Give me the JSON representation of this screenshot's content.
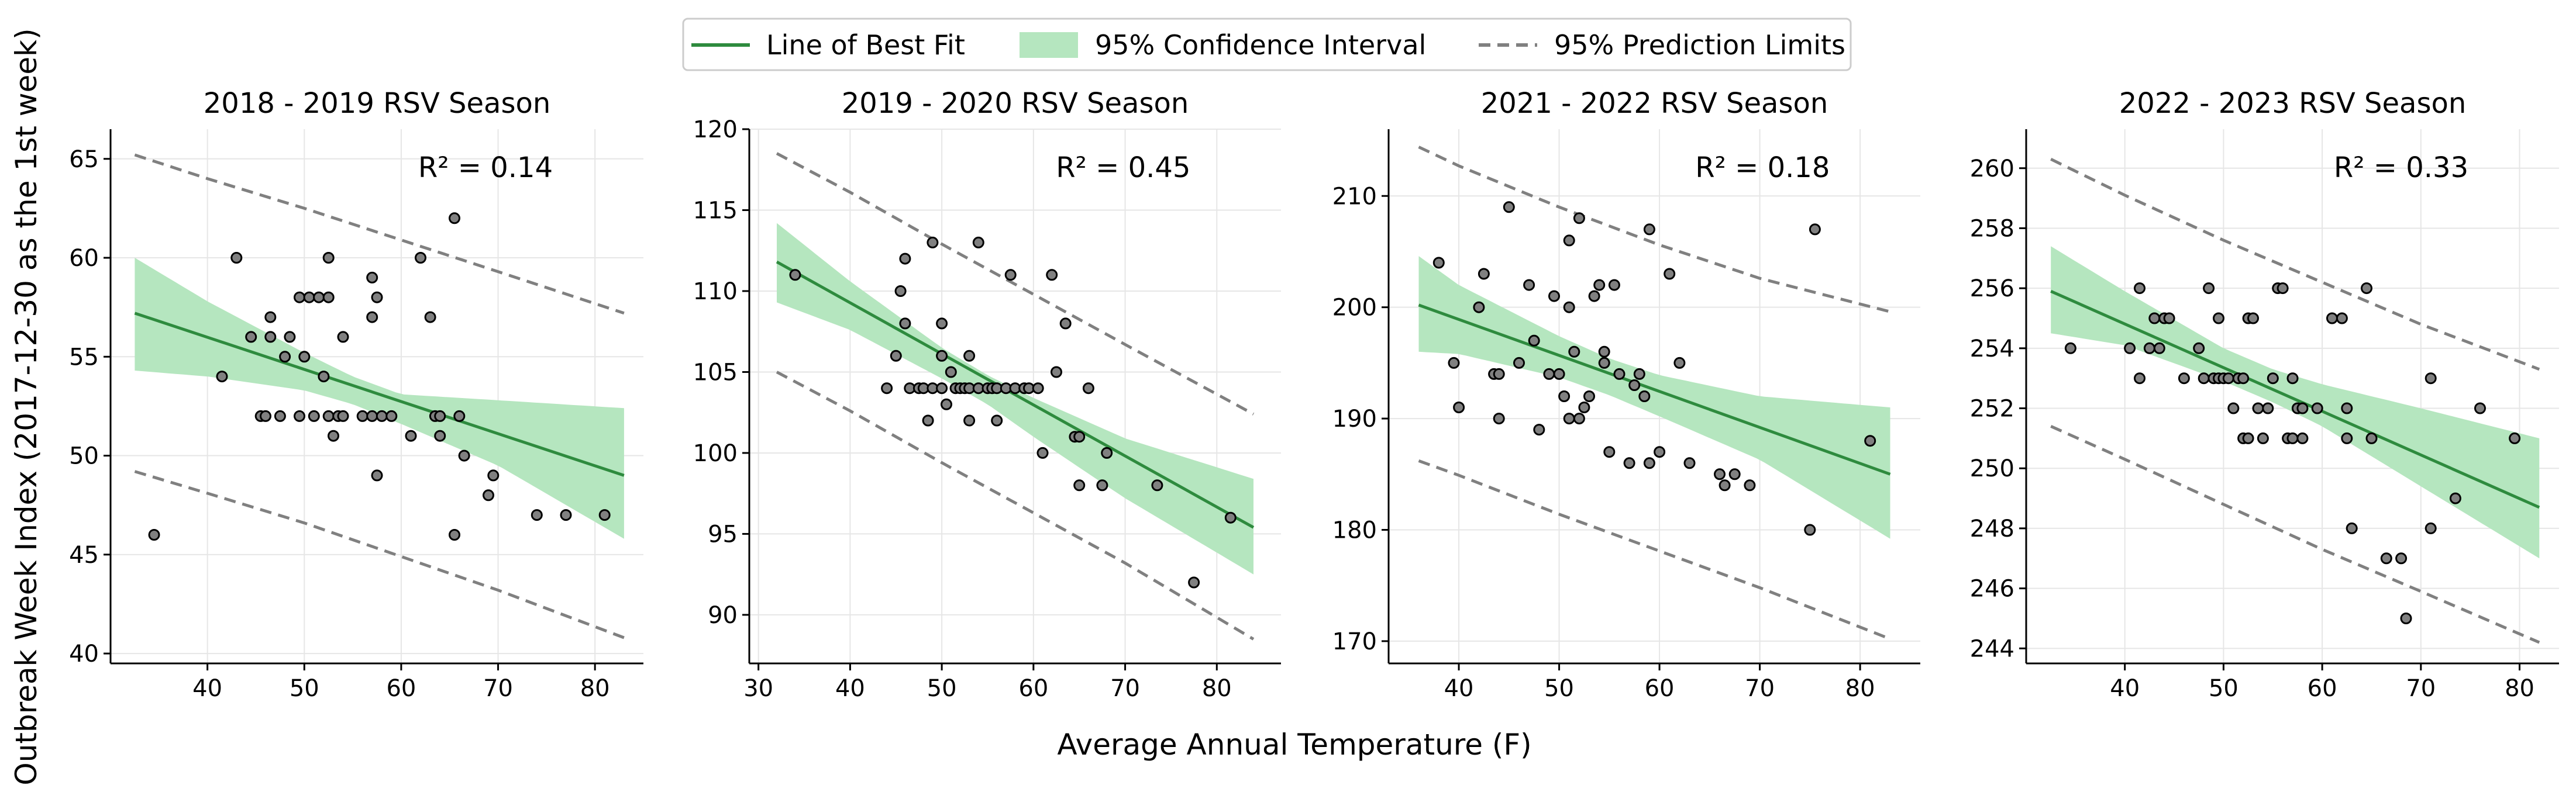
{
  "figure": {
    "ylabel": "Outbreak Week Index (2017-12-30 as the 1st week)",
    "xlabel": "Average Annual Temperature (F)"
  },
  "legend": {
    "placement": "top-center",
    "items": [
      {
        "label": "Line of Best Fit",
        "kind": "line",
        "color": "#2e8b3e"
      },
      {
        "label": "95% Confidence Interval",
        "kind": "band",
        "color": "#b5e6bf"
      },
      {
        "label": "95% Prediction Limits",
        "kind": "dashed",
        "color": "#808080"
      }
    ]
  },
  "colors": {
    "fit_line": "#2e8b3e",
    "ci_band": "#b5e6bf",
    "prediction_limits": "#808080",
    "point_fill": "#808080",
    "point_edge": "#000000",
    "grid": "#e6e6e6"
  },
  "chart_data": [
    {
      "type": "scatter",
      "title": "2018 - 2019 RSV Season",
      "annotation": "R² = 0.14",
      "xlim": [
        30,
        85
      ],
      "ylim": [
        39.5,
        66.5
      ],
      "xticks": [
        40,
        50,
        60,
        70,
        80
      ],
      "yticks": [
        40,
        45,
        50,
        55,
        60,
        65
      ],
      "grid": true,
      "points": [
        [
          34.5,
          46
        ],
        [
          41.5,
          54
        ],
        [
          43,
          60
        ],
        [
          44.5,
          56
        ],
        [
          45.5,
          52
        ],
        [
          46,
          52
        ],
        [
          46.5,
          57
        ],
        [
          46.5,
          56
        ],
        [
          47.5,
          52
        ],
        [
          48,
          55
        ],
        [
          48.5,
          56
        ],
        [
          49.5,
          58
        ],
        [
          49.5,
          52
        ],
        [
          50,
          55
        ],
        [
          50.5,
          58
        ],
        [
          51,
          52
        ],
        [
          51.5,
          58
        ],
        [
          52,
          54
        ],
        [
          52.5,
          58
        ],
        [
          52.5,
          60
        ],
        [
          52.5,
          52
        ],
        [
          53,
          51
        ],
        [
          53.5,
          52
        ],
        [
          54,
          56
        ],
        [
          54,
          52
        ],
        [
          56,
          52
        ],
        [
          57,
          59
        ],
        [
          57,
          57
        ],
        [
          57,
          52
        ],
        [
          57.5,
          58
        ],
        [
          57.5,
          49
        ],
        [
          58,
          52
        ],
        [
          59,
          52
        ],
        [
          61,
          51
        ],
        [
          62,
          60
        ],
        [
          63,
          57
        ],
        [
          63.5,
          52
        ],
        [
          64,
          51
        ],
        [
          64,
          52
        ],
        [
          65.5,
          46
        ],
        [
          65.5,
          62
        ],
        [
          66,
          52
        ],
        [
          66.5,
          50
        ],
        [
          69,
          48
        ],
        [
          69.5,
          49
        ],
        [
          74,
          47
        ],
        [
          77,
          47
        ],
        [
          81,
          47
        ]
      ],
      "fit": {
        "x": [
          32.5,
          83
        ],
        "y": [
          57.2,
          49.0
        ]
      },
      "ci_upper": {
        "x": [
          32.5,
          40,
          50,
          55,
          60,
          70,
          83
        ],
        "y": [
          60.0,
          57.8,
          55.2,
          54.0,
          53.1,
          52.8,
          52.4
        ]
      },
      "ci_lower": {
        "x": [
          32.5,
          40,
          50,
          55,
          60,
          70,
          83
        ],
        "y": [
          54.3,
          54.0,
          53.3,
          52.6,
          51.6,
          49.5,
          45.8
        ]
      },
      "pi_upper": {
        "x": [
          32.5,
          40,
          50,
          60,
          70,
          83
        ],
        "y": [
          65.2,
          64.0,
          62.5,
          60.9,
          59.3,
          57.2
        ]
      },
      "pi_lower": {
        "x": [
          32.5,
          40,
          50,
          60,
          70,
          83
        ],
        "y": [
          49.2,
          48.1,
          46.6,
          44.9,
          43.2,
          40.8
        ]
      }
    },
    {
      "type": "scatter",
      "title": "2019 - 2020 RSV Season",
      "annotation": "R² = 0.45",
      "xlim": [
        29,
        87
      ],
      "ylim": [
        87,
        120
      ],
      "xticks": [
        30,
        40,
        50,
        60,
        70,
        80
      ],
      "yticks": [
        90,
        95,
        100,
        105,
        110,
        115,
        120
      ],
      "grid": true,
      "points": [
        [
          34,
          111
        ],
        [
          44,
          104
        ],
        [
          45,
          106
        ],
        [
          45.5,
          110
        ],
        [
          46,
          112
        ],
        [
          46,
          108
        ],
        [
          46.5,
          104
        ],
        [
          47.5,
          104
        ],
        [
          48,
          104
        ],
        [
          48.5,
          102
        ],
        [
          49,
          113
        ],
        [
          49,
          104
        ],
        [
          50,
          108
        ],
        [
          50,
          106
        ],
        [
          50,
          104
        ],
        [
          50.5,
          103
        ],
        [
          51,
          105
        ],
        [
          51.5,
          104
        ],
        [
          52,
          104
        ],
        [
          52.5,
          104
        ],
        [
          53,
          106
        ],
        [
          53,
          104
        ],
        [
          53,
          102
        ],
        [
          54,
          113
        ],
        [
          54,
          104
        ],
        [
          55,
          104
        ],
        [
          55.5,
          104
        ],
        [
          56,
          102
        ],
        [
          56,
          104
        ],
        [
          57,
          104
        ],
        [
          57.5,
          111
        ],
        [
          58,
          104
        ],
        [
          59,
          104
        ],
        [
          59.5,
          104
        ],
        [
          60.5,
          104
        ],
        [
          61,
          100
        ],
        [
          62,
          111
        ],
        [
          62.5,
          105
        ],
        [
          63.5,
          108
        ],
        [
          64.5,
          101
        ],
        [
          65,
          101
        ],
        [
          65,
          98
        ],
        [
          66,
          104
        ],
        [
          67.5,
          98
        ],
        [
          68,
          100
        ],
        [
          73.5,
          98
        ],
        [
          77.5,
          92
        ],
        [
          81.5,
          96
        ]
      ],
      "fit": {
        "x": [
          32,
          84
        ],
        "y": [
          111.8,
          95.4
        ]
      },
      "ci_upper": {
        "x": [
          32,
          40,
          50,
          55,
          60,
          70,
          84
        ],
        "y": [
          114.2,
          110.6,
          106.5,
          104.8,
          103.4,
          100.9,
          98.4
        ]
      },
      "ci_lower": {
        "x": [
          32,
          40,
          50,
          55,
          60,
          70,
          84
        ],
        "y": [
          109.3,
          107.6,
          104.6,
          103.0,
          101.0,
          97.2,
          92.5
        ]
      },
      "pi_upper": {
        "x": [
          32,
          40,
          50,
          60,
          70,
          84
        ],
        "y": [
          118.5,
          116.1,
          112.9,
          109.8,
          106.7,
          102.4
        ]
      },
      "pi_lower": {
        "x": [
          32,
          40,
          50,
          60,
          70,
          84
        ],
        "y": [
          105.0,
          102.6,
          99.4,
          96.3,
          93.2,
          88.5
        ]
      }
    },
    {
      "type": "scatter",
      "title": "2021 - 2022 RSV Season",
      "annotation": "R² = 0.18",
      "xlim": [
        33,
        86
      ],
      "ylim": [
        168,
        216
      ],
      "xticks": [
        40,
        50,
        60,
        70,
        80
      ],
      "yticks": [
        170,
        180,
        190,
        200,
        210
      ],
      "grid": true,
      "points": [
        [
          38,
          204
        ],
        [
          39.5,
          195
        ],
        [
          40,
          191
        ],
        [
          42,
          200
        ],
        [
          42.5,
          203
        ],
        [
          43.5,
          194
        ],
        [
          44,
          190
        ],
        [
          44,
          194
        ],
        [
          45,
          209
        ],
        [
          46,
          195
        ],
        [
          47,
          202
        ],
        [
          47.5,
          197
        ],
        [
          48,
          189
        ],
        [
          49,
          194
        ],
        [
          49.5,
          201
        ],
        [
          50,
          194
        ],
        [
          50.5,
          192
        ],
        [
          51,
          190
        ],
        [
          51,
          200
        ],
        [
          51,
          206
        ],
        [
          51.5,
          196
        ],
        [
          52,
          208
        ],
        [
          52,
          190
        ],
        [
          52.5,
          191
        ],
        [
          53,
          192
        ],
        [
          53.5,
          201
        ],
        [
          54,
          202
        ],
        [
          54.5,
          195
        ],
        [
          54.5,
          196
        ],
        [
          55,
          187
        ],
        [
          55.5,
          202
        ],
        [
          56,
          194
        ],
        [
          57,
          186
        ],
        [
          57.5,
          193
        ],
        [
          58,
          194
        ],
        [
          58.5,
          192
        ],
        [
          59,
          186
        ],
        [
          59,
          207
        ],
        [
          60,
          187
        ],
        [
          61,
          203
        ],
        [
          62,
          195
        ],
        [
          63,
          186
        ],
        [
          66,
          185
        ],
        [
          66.5,
          184
        ],
        [
          67.5,
          185
        ],
        [
          69,
          184
        ],
        [
          75,
          180
        ],
        [
          75.5,
          207
        ],
        [
          81,
          188
        ]
      ],
      "fit": {
        "x": [
          36,
          83
        ],
        "y": [
          200.2,
          185.0
        ]
      },
      "ci_upper": {
        "x": [
          36,
          40,
          50,
          55,
          60,
          70,
          83
        ],
        "y": [
          204.6,
          202.0,
          197.4,
          195.4,
          193.9,
          192.0,
          191.0
        ]
      },
      "ci_lower": {
        "x": [
          36,
          40,
          50,
          55,
          60,
          70,
          83
        ],
        "y": [
          196.0,
          195.8,
          193.7,
          192.1,
          190.2,
          186.3,
          179.2
        ]
      },
      "pi_upper": {
        "x": [
          36,
          40,
          50,
          60,
          70,
          83
        ],
        "y": [
          214.4,
          212.7,
          209.0,
          205.6,
          202.6,
          199.6
        ]
      },
      "pi_lower": {
        "x": [
          36,
          40,
          50,
          60,
          70,
          83
        ],
        "y": [
          186.2,
          184.9,
          181.4,
          178.1,
          174.8,
          170.2
        ]
      }
    },
    {
      "type": "scatter",
      "title": "2022 - 2023 RSV Season",
      "annotation": "R² = 0.33",
      "xlim": [
        30,
        84
      ],
      "ylim": [
        243.5,
        261.3
      ],
      "xticks": [
        40,
        50,
        60,
        70,
        80
      ],
      "yticks": [
        244,
        246,
        248,
        250,
        252,
        254,
        256,
        258,
        260
      ],
      "grid": true,
      "points": [
        [
          34.5,
          254
        ],
        [
          40.5,
          254
        ],
        [
          41.5,
          253
        ],
        [
          41.5,
          256
        ],
        [
          42.5,
          254
        ],
        [
          43,
          255
        ],
        [
          43.5,
          254
        ],
        [
          44,
          255
        ],
        [
          44.5,
          255
        ],
        [
          46,
          253
        ],
        [
          47.5,
          254
        ],
        [
          48,
          253
        ],
        [
          48.5,
          256
        ],
        [
          49,
          253
        ],
        [
          49.5,
          253
        ],
        [
          49.5,
          255
        ],
        [
          50,
          253
        ],
        [
          50.5,
          253
        ],
        [
          51,
          252
        ],
        [
          51.5,
          253
        ],
        [
          52,
          251
        ],
        [
          52,
          253
        ],
        [
          52.5,
          255
        ],
        [
          52.5,
          251
        ],
        [
          53,
          255
        ],
        [
          53.5,
          252
        ],
        [
          54,
          251
        ],
        [
          54.5,
          252
        ],
        [
          55,
          253
        ],
        [
          55.5,
          256
        ],
        [
          56,
          256
        ],
        [
          56.5,
          251
        ],
        [
          57,
          253
        ],
        [
          57,
          251
        ],
        [
          57.5,
          252
        ],
        [
          58,
          252
        ],
        [
          58,
          251
        ],
        [
          59.5,
          252
        ],
        [
          61,
          255
        ],
        [
          62,
          255
        ],
        [
          62.5,
          252
        ],
        [
          62.5,
          251
        ],
        [
          63,
          248
        ],
        [
          64.5,
          256
        ],
        [
          65,
          251
        ],
        [
          66.5,
          247
        ],
        [
          68,
          247
        ],
        [
          68.5,
          245
        ],
        [
          71,
          253
        ],
        [
          71,
          248
        ],
        [
          73.5,
          249
        ],
        [
          76,
          252
        ],
        [
          79.5,
          251
        ]
      ],
      "fit": {
        "x": [
          32.5,
          82
        ],
        "y": [
          255.9,
          248.7
        ]
      },
      "ci_upper": {
        "x": [
          32.5,
          40,
          50,
          55,
          60,
          70,
          82
        ],
        "y": [
          257.4,
          255.9,
          254.0,
          253.3,
          252.8,
          252.0,
          251.0
        ]
      },
      "ci_lower": {
        "x": [
          32.5,
          40,
          50,
          55,
          60,
          70,
          82
        ],
        "y": [
          254.5,
          254.1,
          252.9,
          252.2,
          251.4,
          249.4,
          247.0
        ]
      },
      "pi_upper": {
        "x": [
          32.5,
          40,
          50,
          60,
          70,
          82
        ],
        "y": [
          260.3,
          259.1,
          257.6,
          256.2,
          254.8,
          253.3
        ]
      },
      "pi_lower": {
        "x": [
          32.5,
          40,
          50,
          60,
          70,
          82
        ],
        "y": [
          251.4,
          250.3,
          248.8,
          247.3,
          245.9,
          244.2
        ]
      }
    }
  ]
}
